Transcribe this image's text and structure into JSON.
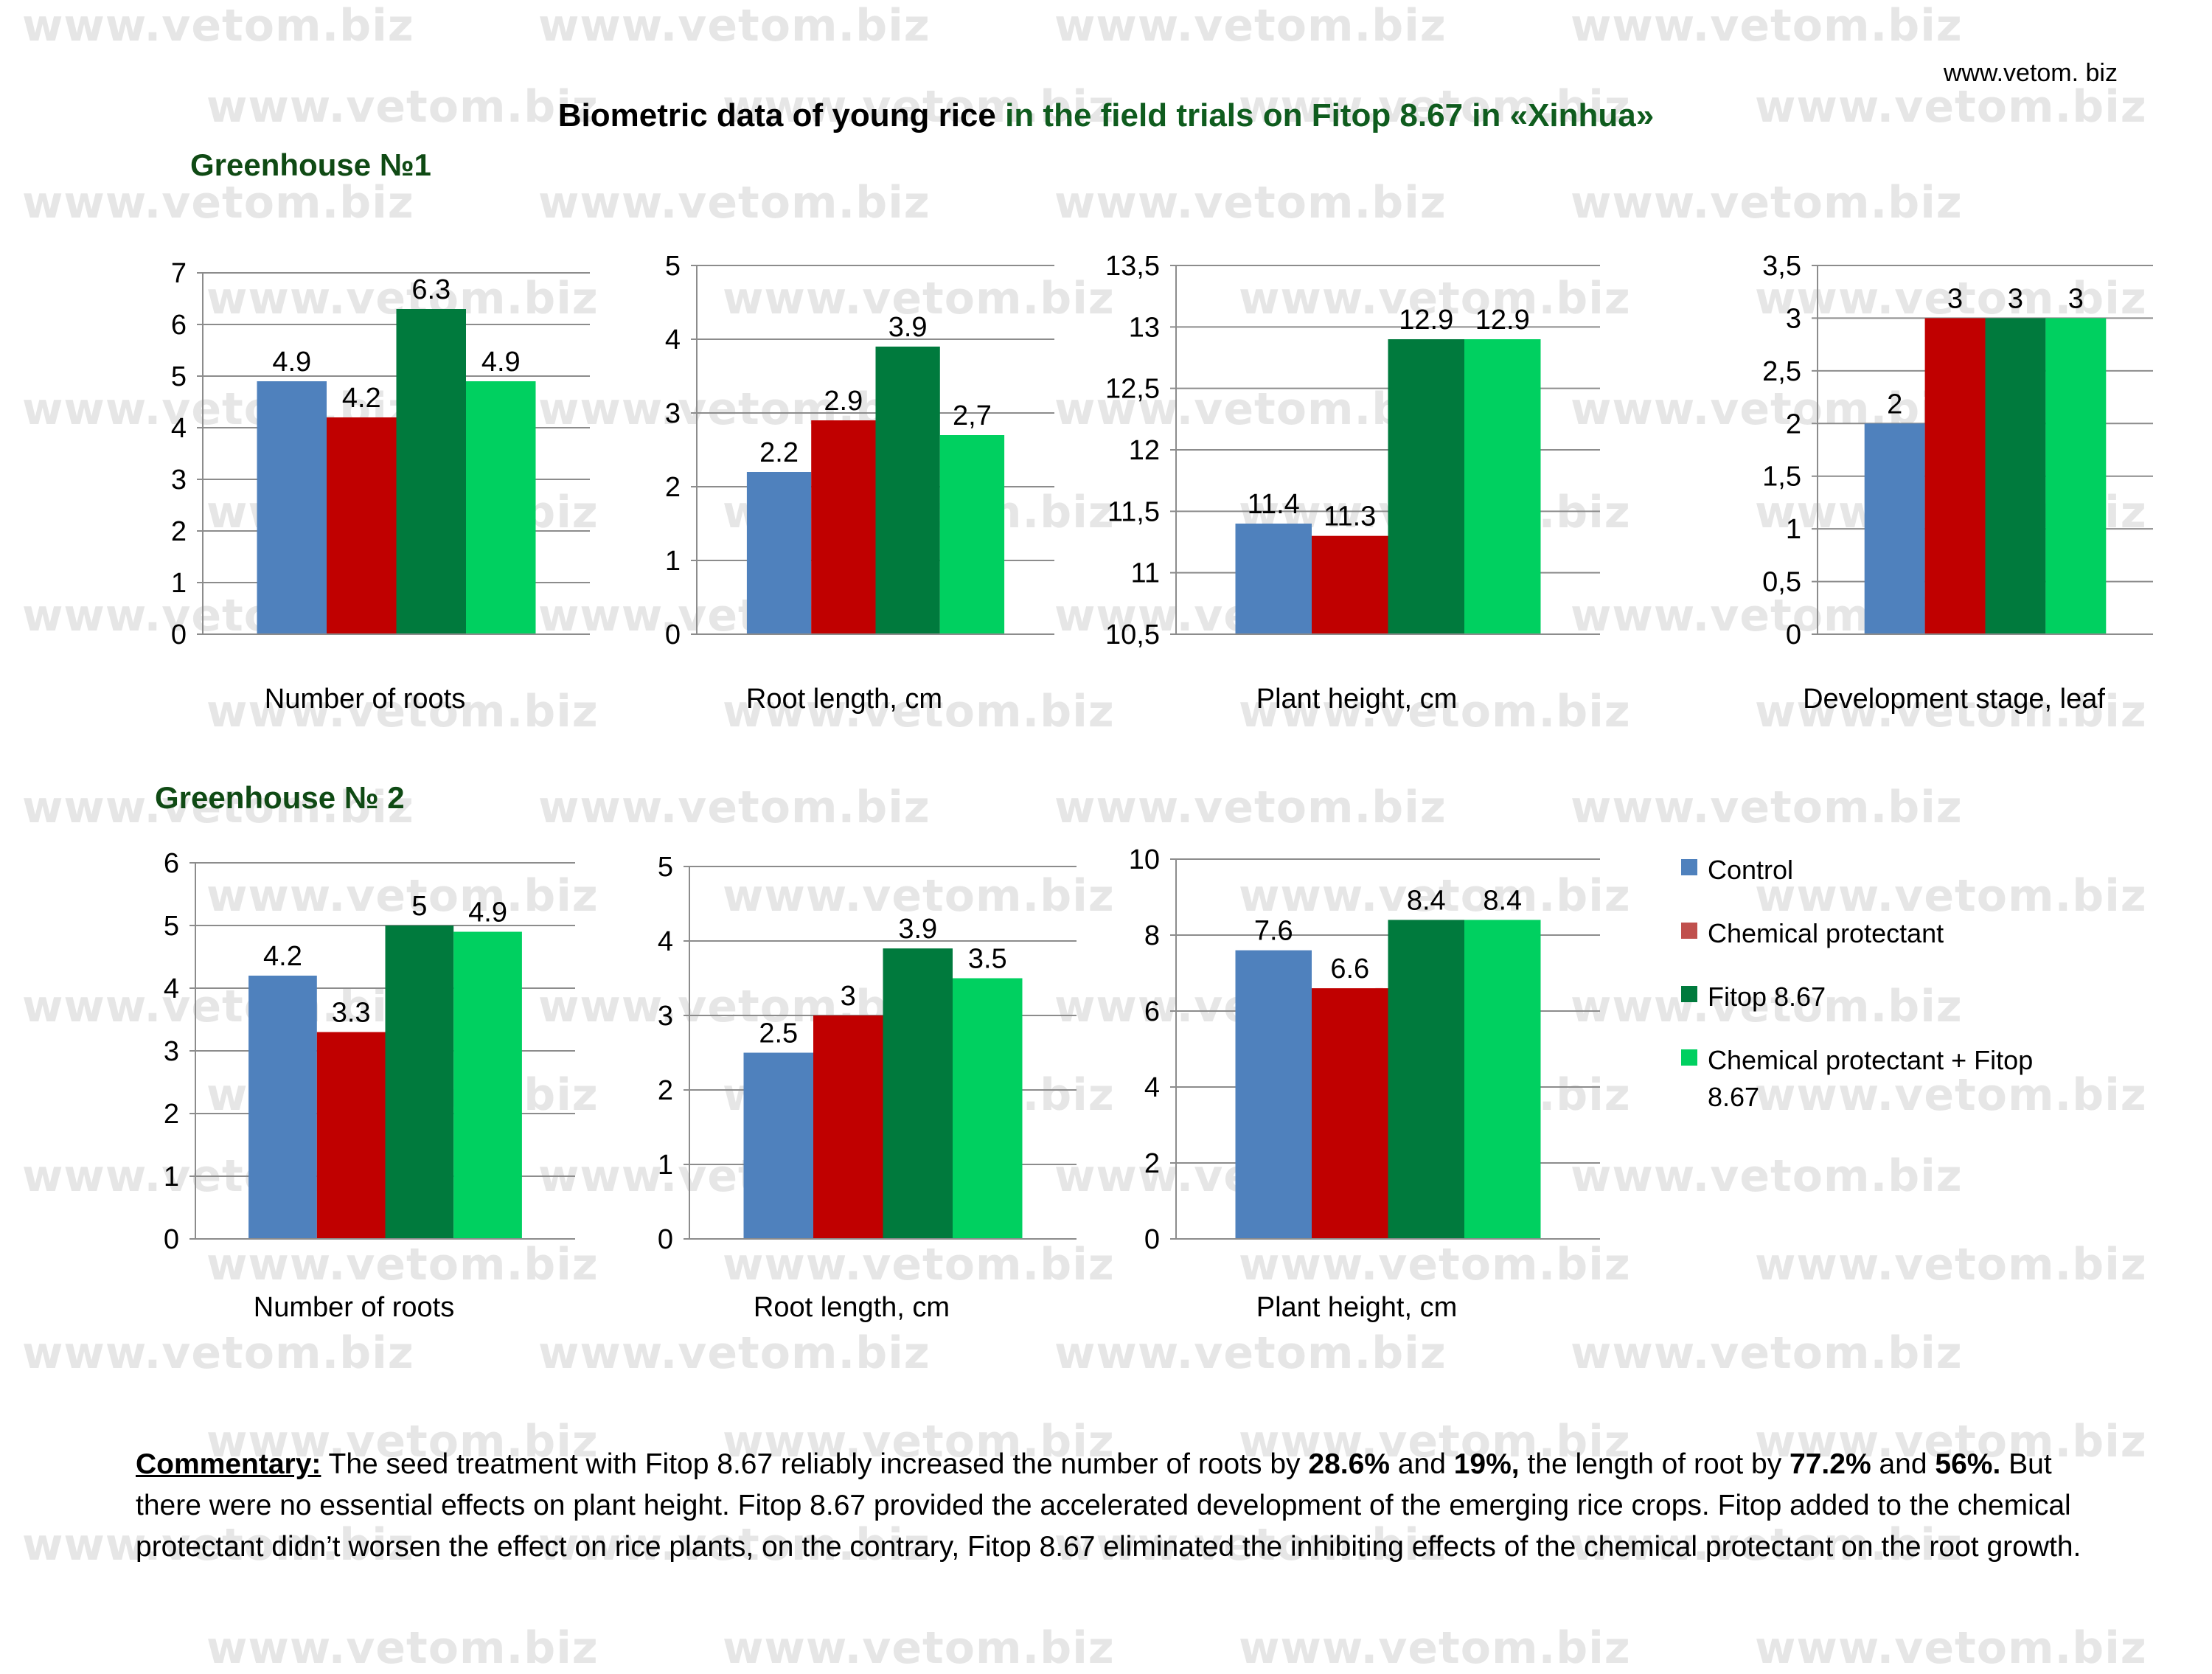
{
  "watermark_text": "www.vetom.biz",
  "site_link": "www.vetom. biz",
  "title": {
    "part1": "Biometric data of  young rice",
    "part2": " in the field trials on Fitop 8.67 in «Xinhua»"
  },
  "greenhouse1_label": "Greenhouse №1",
  "greenhouse2_label": "Greenhouse № 2",
  "series_colors": [
    "#4f81bd",
    "#c00000",
    "#007a3d",
    "#00d060"
  ],
  "legend": [
    {
      "label": "Control",
      "color": "#4f81bd"
    },
    {
      "label": "Chemical protectant",
      "color": "#c0504d"
    },
    {
      "label": "Fitop 8.67",
      "color": "#007a3d"
    },
    {
      "label": "Chemical protectant + Fitop 8.67",
      "color": "#00d060"
    }
  ],
  "chart_data": [
    {
      "type": "bar",
      "group": "Greenhouse №1",
      "xlabel": "Number of roots",
      "ylim": [
        0,
        7
      ],
      "ticks": [
        0,
        1,
        2,
        3,
        4,
        5,
        6,
        7
      ],
      "tick_labels": [
        "0",
        "1",
        "2",
        "3",
        "4",
        "5",
        "6",
        "7"
      ],
      "values": [
        4.9,
        4.2,
        6.3,
        4.9
      ],
      "value_labels": [
        "4.9",
        "4.2",
        "6.3",
        "4.9"
      ]
    },
    {
      "type": "bar",
      "group": "Greenhouse №1",
      "xlabel": "Root length, cm",
      "ylim": [
        0,
        5
      ],
      "ticks": [
        0,
        1,
        2,
        3,
        4,
        5
      ],
      "tick_labels": [
        "0",
        "1",
        "2",
        "3",
        "4",
        "5"
      ],
      "values": [
        2.2,
        2.9,
        3.9,
        2.7
      ],
      "value_labels": [
        "2.2",
        "2.9",
        "3.9",
        "2,7"
      ]
    },
    {
      "type": "bar",
      "group": "Greenhouse №1",
      "xlabel": "Plant height, cm",
      "ylim": [
        10.5,
        13.5
      ],
      "ticks": [
        10.5,
        11,
        11.5,
        12,
        12.5,
        13,
        13.5
      ],
      "tick_labels": [
        "10,5",
        "11",
        "11,5",
        "12",
        "12,5",
        "13",
        "13,5"
      ],
      "values": [
        11.4,
        11.3,
        12.9,
        12.9
      ],
      "value_labels": [
        "11.4",
        "11.3",
        "12.9",
        "12.9"
      ]
    },
    {
      "type": "bar",
      "group": "Greenhouse №1",
      "xlabel": "Development stage, leaf",
      "ylim": [
        0,
        3.5
      ],
      "ticks": [
        0,
        0.5,
        1,
        1.5,
        2,
        2.5,
        3,
        3.5
      ],
      "tick_labels": [
        "0",
        "0,5",
        "1",
        "1,5",
        "2",
        "2,5",
        "3",
        "3,5"
      ],
      "values": [
        2,
        3,
        3,
        3
      ],
      "value_labels": [
        "2",
        "3",
        "3",
        "3"
      ]
    },
    {
      "type": "bar",
      "group": "Greenhouse № 2",
      "xlabel": "Number of roots",
      "ylim": [
        0,
        6
      ],
      "ticks": [
        0,
        1,
        2,
        3,
        4,
        5,
        6
      ],
      "tick_labels": [
        "0",
        "1",
        "2",
        "3",
        "4",
        "5",
        "6"
      ],
      "values": [
        4.2,
        3.3,
        5,
        4.9
      ],
      "value_labels": [
        "4.2",
        "3.3",
        "5",
        "4.9"
      ]
    },
    {
      "type": "bar",
      "group": "Greenhouse № 2",
      "xlabel": "Root length, cm",
      "ylim": [
        0,
        5
      ],
      "ticks": [
        0,
        1,
        2,
        3,
        4,
        5
      ],
      "tick_labels": [
        "0",
        "1",
        "2",
        "3",
        "4",
        "5"
      ],
      "values": [
        2.5,
        3,
        3.9,
        3.5
      ],
      "value_labels": [
        "2.5",
        "3",
        "3.9",
        "3.5"
      ]
    },
    {
      "type": "bar",
      "group": "Greenhouse № 2",
      "xlabel": "Plant height, cm",
      "ylim": [
        0,
        10
      ],
      "ticks": [
        0,
        2,
        4,
        6,
        8,
        10
      ],
      "tick_labels": [
        "0",
        "2",
        "4",
        "6",
        "8",
        "10"
      ],
      "values": [
        7.6,
        6.6,
        8.4,
        8.4
      ],
      "value_labels": [
        "7.6",
        "6.6",
        "8.4",
        "8.4"
      ]
    }
  ],
  "commentary": {
    "heading": "Commentary:",
    "t1": " The seed treatment with Fitop 8.67 reliably increased the number of roots by ",
    "b1": "28.6%",
    "t2": " and ",
    "b2": "19%,",
    "t3": " the length of root by ",
    "b3": "77.2%",
    "t4": " and ",
    "b4": "56%.",
    "t5": " But there were no essential effects on plant height. Fitop 8.67 provided the accelerated development of the emerging rice crops. Fitop added to the chemical protectant didn’t worsen the effect on rice plants, on the contrary, Fitop 8.67 eliminated the inhibiting effects of the chemical protectant on the root growth."
  }
}
